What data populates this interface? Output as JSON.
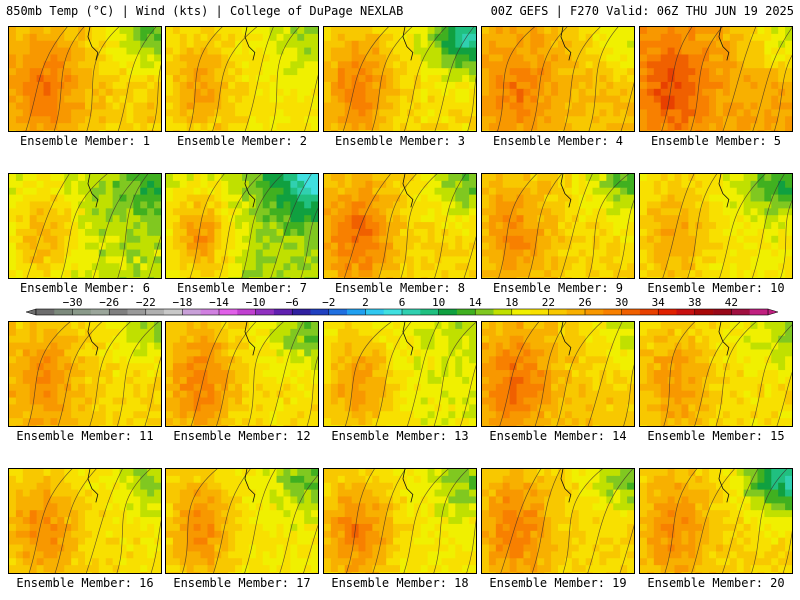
{
  "header": {
    "left": "850mb Temp (°C) | Wind (kts) | College of DuPage NEXLAB",
    "right": "00Z GEFS | F270 Valid: 06Z THU JUN 19 2025"
  },
  "panels": [
    {
      "label": "Ensemble Member: 1",
      "mean_temp": 23,
      "warm_west": 30,
      "cool_ne": 14
    },
    {
      "label": "Ensemble Member: 2",
      "mean_temp": 20,
      "warm_west": 26,
      "cool_ne": 16
    },
    {
      "label": "Ensemble Member: 3",
      "mean_temp": 21,
      "warm_west": 29,
      "cool_ne": 8
    },
    {
      "label": "Ensemble Member: 4",
      "mean_temp": 24,
      "warm_west": 29,
      "cool_ne": 18
    },
    {
      "label": "Ensemble Member: 5",
      "mean_temp": 26,
      "warm_west": 32,
      "cool_ne": 18
    },
    {
      "label": "Ensemble Member: 6",
      "mean_temp": 17,
      "warm_west": 25,
      "cool_ne": 12
    },
    {
      "label": "Ensemble Member: 7",
      "mean_temp": 16,
      "warm_west": 27,
      "cool_ne": 6
    },
    {
      "label": "Ensemble Member: 8",
      "mean_temp": 22,
      "warm_west": 30,
      "cool_ne": 14
    },
    {
      "label": "Ensemble Member: 9",
      "mean_temp": 22,
      "warm_west": 28,
      "cool_ne": 14
    },
    {
      "label": "Ensemble Member: 10",
      "mean_temp": 20,
      "warm_west": 26,
      "cool_ne": 12
    },
    {
      "label": "Ensemble Member: 11",
      "mean_temp": 22,
      "warm_west": 28,
      "cool_ne": 16
    },
    {
      "label": "Ensemble Member: 12",
      "mean_temp": 21,
      "warm_west": 29,
      "cool_ne": 14
    },
    {
      "label": "Ensemble Member: 13",
      "mean_temp": 19,
      "warm_west": 27,
      "cool_ne": 17
    },
    {
      "label": "Ensemble Member: 14",
      "mean_temp": 23,
      "warm_west": 30,
      "cool_ne": 17
    },
    {
      "label": "Ensemble Member: 15",
      "mean_temp": 21,
      "warm_west": 27,
      "cool_ne": 16
    },
    {
      "label": "Ensemble Member: 16",
      "mean_temp": 21,
      "warm_west": 28,
      "cool_ne": 15
    },
    {
      "label": "Ensemble Member: 17",
      "mean_temp": 20,
      "warm_west": 28,
      "cool_ne": 14
    },
    {
      "label": "Ensemble Member: 18",
      "mean_temp": 20,
      "warm_west": 29,
      "cool_ne": 15
    },
    {
      "label": "Ensemble Member: 19",
      "mean_temp": 22,
      "warm_west": 29,
      "cool_ne": 15
    },
    {
      "label": "Ensemble Member: 20",
      "mean_temp": 22,
      "warm_west": 28,
      "cool_ne": 8
    }
  ],
  "colorbar": {
    "ticks": [
      "−30",
      "−26",
      "−22",
      "−18",
      "−14",
      "−10",
      "−6",
      "−2",
      "2",
      "6",
      "10",
      "14",
      "18",
      "22",
      "26",
      "30",
      "34",
      "38",
      "42"
    ],
    "tick_values": [
      -30,
      -26,
      -22,
      -18,
      -14,
      -10,
      -6,
      -2,
      2,
      6,
      10,
      14,
      18,
      22,
      26,
      30,
      34,
      38,
      42
    ],
    "min": -34,
    "max": 46,
    "bin_width": 2,
    "colors": [
      "#6d6d6d",
      "#7c8a7c",
      "#8a9a8a",
      "#9aa59a",
      "#808080",
      "#9a9a9a",
      "#b0b0b0",
      "#c8c8c8",
      "#c8a0d8",
      "#d080e0",
      "#e060e8",
      "#c040d0",
      "#9030c0",
      "#6020b0",
      "#3020a0",
      "#2040c0",
      "#2070e0",
      "#20a0f0",
      "#30c8f0",
      "#40e0e0",
      "#30d0b0",
      "#20c080",
      "#10a040",
      "#40b020",
      "#80c820",
      "#c0e000",
      "#f0f000",
      "#f8e000",
      "#f8c800",
      "#f8b000",
      "#f89800",
      "#f88000",
      "#f06000",
      "#e84000",
      "#e02000",
      "#c81010",
      "#a80808",
      "#980818",
      "#a01040",
      "#c02080"
    ]
  }
}
